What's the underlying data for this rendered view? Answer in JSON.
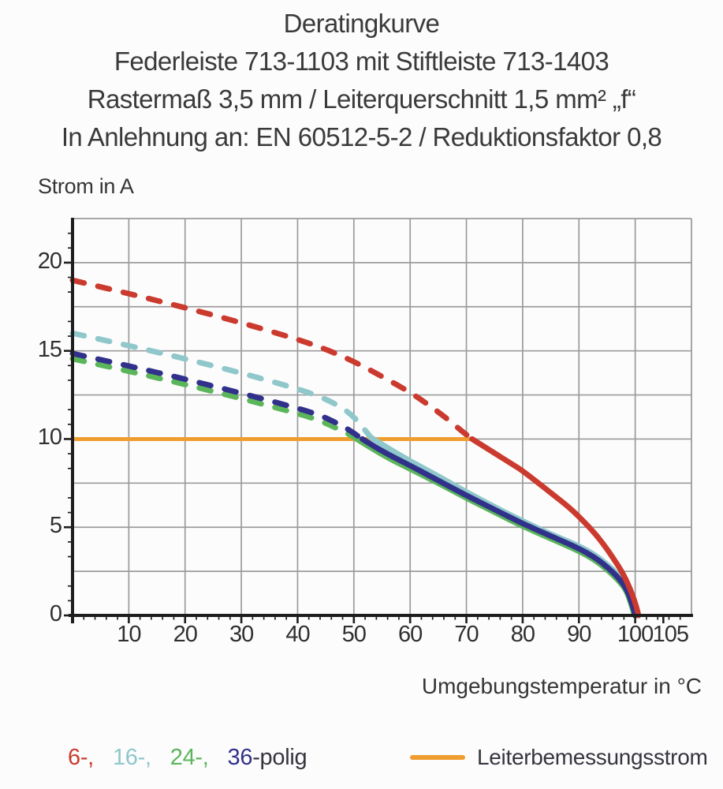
{
  "title": {
    "lines": [
      "Deratingkurve",
      "Federleiste 713-1103 mit Stiftleiste 713-1403",
      "Rastermaß 3,5 mm / Leiterquerschnitt 1,5 mm² „f“",
      "In Anlehnung an: EN 60512-5-2 / Reduktionsfaktor 0,8"
    ]
  },
  "chart_data": {
    "type": "line",
    "title": "Deratingkurve Federleiste 713-1103 mit Stiftleiste 713-1403",
    "y_axis_title": "Strom in A",
    "x_axis_title": "Umgebungstemperatur in °C",
    "xlim": [
      0,
      110
    ],
    "ylim": [
      0,
      22.5
    ],
    "x_ticks_labeled": [
      10,
      20,
      30,
      40,
      50,
      60,
      70,
      80,
      90,
      100,
      105
    ],
    "y_ticks_labeled": [
      0,
      5,
      10,
      15,
      20
    ],
    "x_gridlines": [
      10,
      20,
      30,
      40,
      50,
      60,
      70,
      80,
      90,
      100
    ],
    "y_gridlines": [
      2.5,
      5,
      7.5,
      10,
      12.5,
      15,
      17.5,
      20
    ],
    "x_minor_step": 2,
    "y_minor_step": 0.8333,
    "grid_on": true,
    "grid_color": "#9b9b9b",
    "axis_color": "#1e1e1e",
    "legend_position": "bottom-left",
    "rated_current_line": {
      "label": "Leiterbemessungsstrom",
      "color": "#f09d2f",
      "value": 10,
      "x_start": 0,
      "x_end": 71
    },
    "series": [
      {
        "name": "6-polig",
        "color": "#cb3a2e",
        "style_above_rated": "dashed",
        "dashed": [
          [
            0,
            19.0
          ],
          [
            10,
            18.25
          ],
          [
            20,
            17.45
          ],
          [
            30,
            16.6
          ],
          [
            40,
            15.65
          ],
          [
            45,
            15.1
          ],
          [
            50,
            14.4
          ],
          [
            55,
            13.55
          ],
          [
            60,
            12.65
          ],
          [
            63,
            12.0
          ],
          [
            66,
            11.3
          ],
          [
            69,
            10.5
          ],
          [
            71,
            10.0
          ]
        ],
        "solid": [
          [
            71,
            10.0
          ],
          [
            74,
            9.4
          ],
          [
            78,
            8.6
          ],
          [
            80,
            8.2
          ],
          [
            84,
            7.2
          ],
          [
            88,
            6.2
          ],
          [
            90,
            5.6
          ],
          [
            92,
            4.95
          ],
          [
            94,
            4.2
          ],
          [
            96,
            3.3
          ],
          [
            98,
            2.3
          ],
          [
            99.5,
            1.2
          ],
          [
            100.3,
            0.4
          ],
          [
            100.6,
            0
          ]
        ]
      },
      {
        "name": "16-polig",
        "color": "#8fc7cb",
        "style_above_rated": "dashed",
        "dashed": [
          [
            0,
            16.0
          ],
          [
            10,
            15.3
          ],
          [
            20,
            14.55
          ],
          [
            30,
            13.75
          ],
          [
            40,
            12.85
          ],
          [
            44,
            12.4
          ],
          [
            47,
            11.95
          ],
          [
            50,
            11.3
          ],
          [
            53,
            10.1
          ]
        ],
        "solid": [
          [
            53,
            10.1
          ],
          [
            56,
            9.5
          ],
          [
            60,
            8.75
          ],
          [
            65,
            7.9
          ],
          [
            70,
            7.0
          ],
          [
            75,
            6.15
          ],
          [
            80,
            5.35
          ],
          [
            85,
            4.6
          ],
          [
            90,
            3.95
          ],
          [
            93,
            3.4
          ],
          [
            95,
            2.9
          ],
          [
            97,
            2.3
          ],
          [
            98.5,
            1.6
          ],
          [
            99.6,
            0.7
          ],
          [
            100.2,
            0
          ]
        ]
      },
      {
        "name": "24-polig",
        "color": "#5bb55a",
        "style_above_rated": "dashed",
        "dashed": [
          [
            0,
            14.55
          ],
          [
            10,
            13.85
          ],
          [
            20,
            13.1
          ],
          [
            30,
            12.3
          ],
          [
            40,
            11.45
          ],
          [
            44,
            11.05
          ],
          [
            47,
            10.6
          ],
          [
            49,
            10.3
          ],
          [
            50.5,
            10.0
          ]
        ],
        "solid": [
          [
            50.5,
            10.0
          ],
          [
            55,
            9.1
          ],
          [
            60,
            8.3
          ],
          [
            65,
            7.5
          ],
          [
            70,
            6.65
          ],
          [
            75,
            5.85
          ],
          [
            80,
            5.05
          ],
          [
            85,
            4.35
          ],
          [
            90,
            3.65
          ],
          [
            93,
            3.1
          ],
          [
            95,
            2.6
          ],
          [
            97,
            2.0
          ],
          [
            98.5,
            1.4
          ],
          [
            99.4,
            0.5
          ],
          [
            99.9,
            0
          ]
        ]
      },
      {
        "name": "36-polig",
        "color": "#31318c",
        "style_above_rated": "dashed",
        "dashed": [
          [
            0,
            14.85
          ],
          [
            10,
            14.15
          ],
          [
            20,
            13.4
          ],
          [
            30,
            12.6
          ],
          [
            40,
            11.75
          ],
          [
            44,
            11.35
          ],
          [
            47,
            10.9
          ],
          [
            49,
            10.55
          ],
          [
            51.5,
            10.0
          ]
        ],
        "solid": [
          [
            51.5,
            10.0
          ],
          [
            55,
            9.3
          ],
          [
            60,
            8.5
          ],
          [
            65,
            7.65
          ],
          [
            70,
            6.8
          ],
          [
            75,
            6.0
          ],
          [
            80,
            5.2
          ],
          [
            85,
            4.5
          ],
          [
            90,
            3.8
          ],
          [
            93,
            3.25
          ],
          [
            95,
            2.75
          ],
          [
            97,
            2.15
          ],
          [
            98.5,
            1.5
          ],
          [
            99.5,
            0.6
          ],
          [
            100,
            0
          ]
        ]
      }
    ]
  },
  "legend": {
    "pole_items": [
      {
        "label": "6-,",
        "color": "#cb3a2e"
      },
      {
        "label": "16-,",
        "color": "#8fc7cb"
      },
      {
        "label": "24-,",
        "color": "#5bb55a"
      },
      {
        "label": "36",
        "color": "#31318c"
      }
    ],
    "suffix": "-polig",
    "suffix_color": "#35353f",
    "rated_label": "Leiterbemessungsstrom"
  }
}
